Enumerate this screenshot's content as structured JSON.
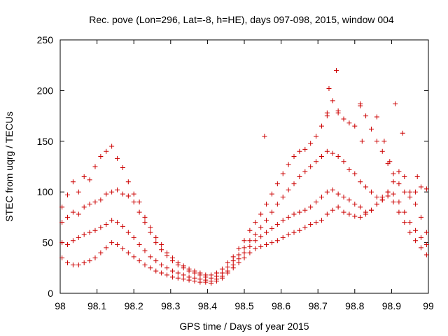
{
  "chart_data": {
    "type": "scatter",
    "title": "Rec. pove (Lon=296, Lat=-8, h=HE), days 097-098, 2015, window 004",
    "xlabel": "GPS time / Days of year 2015",
    "ylabel": "STEC from uqrg / TECUs",
    "xlim": [
      98,
      99
    ],
    "ylim": [
      0,
      250
    ],
    "xticks": [
      98,
      98.1,
      98.2,
      98.3,
      98.4,
      98.5,
      98.6,
      98.7,
      98.8,
      98.9,
      99
    ],
    "xtick_labels": [
      "98",
      "98.1",
      "98.2",
      "98.3",
      "98.4",
      "98.5",
      "98.6",
      "98.7",
      "98.8",
      "98.9",
      "99"
    ],
    "yticks": [
      0,
      50,
      100,
      150,
      200,
      250
    ],
    "ytick_labels": [
      "0",
      "50",
      "100",
      "150",
      "200",
      "250"
    ],
    "grid": false,
    "marker": "plus",
    "color": "#cc0000",
    "series": [
      {
        "x": [
          98.005,
          98.02,
          98.035,
          98.05,
          98.065,
          98.08,
          98.095,
          98.11,
          98.125,
          98.14,
          98.155,
          98.17,
          98.185,
          98.2,
          98.215,
          98.23,
          98.245,
          98.26,
          98.275,
          98.29,
          98.305,
          98.32,
          98.335,
          98.35,
          98.365,
          98.38,
          98.395,
          98.41,
          98.425,
          98.44,
          98.455,
          98.47,
          98.485,
          98.5,
          98.515,
          98.53,
          98.545,
          98.56,
          98.575,
          98.59,
          98.605,
          98.62,
          98.635,
          98.65,
          98.665,
          98.68,
          98.695,
          98.71,
          98.725,
          98.74,
          98.755,
          98.77,
          98.785,
          98.8,
          98.815,
          98.83,
          98.845,
          98.86,
          98.875,
          98.89,
          98.905,
          98.92,
          98.935,
          98.95,
          98.965,
          98.98,
          98.995
        ],
        "y": [
          85,
          97,
          110,
          100,
          115,
          112,
          125,
          135,
          140,
          145,
          133,
          124,
          110,
          98,
          90,
          75,
          65,
          55,
          48,
          40,
          35,
          30,
          27,
          24,
          22,
          20,
          18,
          18,
          20,
          24,
          30,
          36,
          44,
          52,
          62,
          70,
          78,
          88,
          98,
          108,
          118,
          127,
          135,
          140,
          142,
          148,
          155,
          165,
          178,
          190,
          180,
          172,
          168,
          165,
          185,
          175,
          162,
          150,
          140,
          128,
          118,
          108,
          100,
          95,
          100,
          105,
          103
        ]
      },
      {
        "x": [
          98.005,
          98.02,
          98.035,
          98.05,
          98.065,
          98.08,
          98.095,
          98.11,
          98.125,
          98.14,
          98.155,
          98.17,
          98.185,
          98.2,
          98.215,
          98.23,
          98.245,
          98.26,
          98.275,
          98.29,
          98.305,
          98.32,
          98.335,
          98.35,
          98.365,
          98.38,
          98.395,
          98.41,
          98.425,
          98.44,
          98.455,
          98.47,
          98.485,
          98.5,
          98.515,
          98.53,
          98.545,
          98.56,
          98.575,
          98.59,
          98.605,
          98.62,
          98.635,
          98.65,
          98.665,
          98.68,
          98.695,
          98.71,
          98.725,
          98.74,
          98.755,
          98.77,
          98.785,
          98.8,
          98.815,
          98.83,
          98.845,
          98.86,
          98.875,
          98.89,
          98.905,
          98.92,
          98.935,
          98.95,
          98.965,
          98.98,
          98.995
        ],
        "y": [
          70,
          75,
          80,
          78,
          85,
          88,
          90,
          92,
          98,
          100,
          102,
          98,
          96,
          90,
          80,
          70,
          60,
          50,
          43,
          37,
          32,
          28,
          25,
          22,
          20,
          18,
          16,
          15,
          17,
          20,
          26,
          32,
          38,
          45,
          52,
          58,
          65,
          72,
          80,
          88,
          95,
          102,
          108,
          115,
          120,
          125,
          130,
          135,
          140,
          138,
          135,
          130,
          122,
          118,
          110,
          105,
          100,
          95,
          92,
          100,
          110,
          120,
          115,
          100,
          88,
          75,
          60
        ]
      },
      {
        "x": [
          98.005,
          98.02,
          98.035,
          98.05,
          98.065,
          98.08,
          98.095,
          98.11,
          98.125,
          98.14,
          98.155,
          98.17,
          98.185,
          98.2,
          98.215,
          98.23,
          98.245,
          98.26,
          98.275,
          98.29,
          98.305,
          98.32,
          98.335,
          98.35,
          98.365,
          98.38,
          98.395,
          98.41,
          98.425,
          98.44,
          98.455,
          98.47,
          98.485,
          98.5,
          98.515,
          98.53,
          98.545,
          98.56,
          98.575,
          98.59,
          98.605,
          98.62,
          98.635,
          98.65,
          98.665,
          98.68,
          98.695,
          98.71,
          98.725,
          98.74,
          98.755,
          98.77,
          98.785,
          98.8,
          98.815,
          98.83,
          98.845,
          98.86,
          98.875,
          98.89,
          98.905,
          98.92,
          98.935,
          98.95,
          98.965,
          98.98,
          98.995
        ],
        "y": [
          50,
          48,
          52,
          55,
          58,
          60,
          62,
          65,
          68,
          72,
          70,
          66,
          60,
          55,
          48,
          42,
          36,
          32,
          28,
          25,
          22,
          20,
          18,
          16,
          15,
          14,
          13,
          12,
          14,
          17,
          22,
          28,
          34,
          40,
          46,
          52,
          56,
          60,
          64,
          68,
          72,
          75,
          78,
          80,
          82,
          85,
          90,
          95,
          100,
          102,
          98,
          95,
          92,
          88,
          85,
          80,
          82,
          88,
          95,
          100,
          98,
          90,
          80,
          70,
          62,
          55,
          48
        ]
      },
      {
        "x": [
          98.005,
          98.02,
          98.035,
          98.05,
          98.065,
          98.08,
          98.095,
          98.11,
          98.125,
          98.14,
          98.155,
          98.17,
          98.185,
          98.2,
          98.215,
          98.23,
          98.245,
          98.26,
          98.275,
          98.29,
          98.305,
          98.32,
          98.335,
          98.35,
          98.365,
          98.38,
          98.395,
          98.41,
          98.425,
          98.44,
          98.455,
          98.47,
          98.485,
          98.5,
          98.515,
          98.53,
          98.545,
          98.56,
          98.575,
          98.59,
          98.605,
          98.62,
          98.635,
          98.65,
          98.665,
          98.68,
          98.695,
          98.71,
          98.725,
          98.74,
          98.755,
          98.77,
          98.785,
          98.8,
          98.815,
          98.83,
          98.845,
          98.86,
          98.875,
          98.89,
          98.905,
          98.92,
          98.935,
          98.95,
          98.965,
          98.98,
          98.995
        ],
        "y": [
          35,
          30,
          28,
          28,
          30,
          32,
          35,
          40,
          45,
          50,
          48,
          44,
          40,
          36,
          32,
          28,
          25,
          22,
          20,
          18,
          16,
          15,
          14,
          13,
          12,
          11,
          11,
          10,
          12,
          15,
          20,
          25,
          30,
          35,
          40,
          44,
          46,
          48,
          50,
          52,
          55,
          58,
          60,
          62,
          65,
          68,
          70,
          72,
          78,
          82,
          85,
          80,
          78,
          76,
          75,
          78,
          82,
          88,
          92,
          96,
          90,
          80,
          70,
          60,
          52,
          45,
          38
        ]
      }
    ],
    "outliers": {
      "x": [
        98.75,
        98.73,
        98.815,
        98.91,
        98.86,
        98.93,
        98.555,
        98.725,
        98.755,
        98.82,
        98.88,
        98.895,
        98.97
      ],
      "y": [
        220,
        202,
        187,
        187,
        174,
        158,
        155,
        175,
        178,
        150,
        150,
        130,
        115
      ]
    }
  }
}
